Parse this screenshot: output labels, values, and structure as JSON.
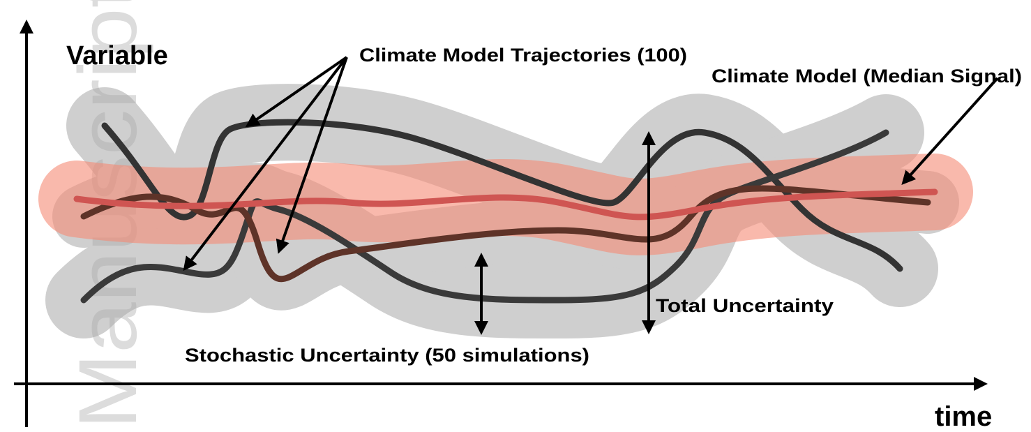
{
  "watermark": "Manuscript",
  "axes": {
    "y_label": "Variable",
    "x_label": "time"
  },
  "labels": {
    "trajectories": "Climate Model Trajectories (100)",
    "median": "Climate Model (Median Signal)",
    "total_uncertainty": "Total Uncertainty",
    "stochastic_uncertainty": "Stochastic Uncertainty (50 simulations)"
  }
}
